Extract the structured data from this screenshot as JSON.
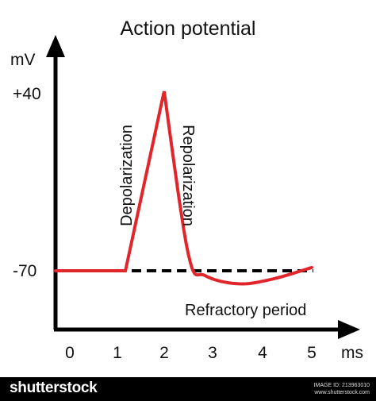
{
  "title": "Action potential",
  "y_axis": {
    "unit": "mV",
    "ticks": [
      "+40",
      "-70"
    ]
  },
  "x_axis": {
    "unit": "ms",
    "ticks": [
      "0",
      "1",
      "2",
      "3",
      "4",
      "5"
    ]
  },
  "labels": {
    "rise": "Depolarization",
    "fall": "Repolarization",
    "after": "Refractory period"
  },
  "trace": {
    "color": "#e0262b",
    "points_ms_mv": [
      [
        0,
        -70
      ],
      [
        1.15,
        -70
      ],
      [
        1.95,
        40
      ],
      [
        2.45,
        -60
      ],
      [
        2.8,
        -73
      ],
      [
        3.5,
        -78
      ],
      [
        4.2,
        -75
      ],
      [
        5.0,
        -68
      ]
    ]
  },
  "baseline": {
    "value_mv": -70,
    "style": "dashed"
  },
  "footer": {
    "brand": "shutterstock",
    "image_id": "IMAGE ID: 213963010",
    "site": "www.shutterstock.com"
  }
}
